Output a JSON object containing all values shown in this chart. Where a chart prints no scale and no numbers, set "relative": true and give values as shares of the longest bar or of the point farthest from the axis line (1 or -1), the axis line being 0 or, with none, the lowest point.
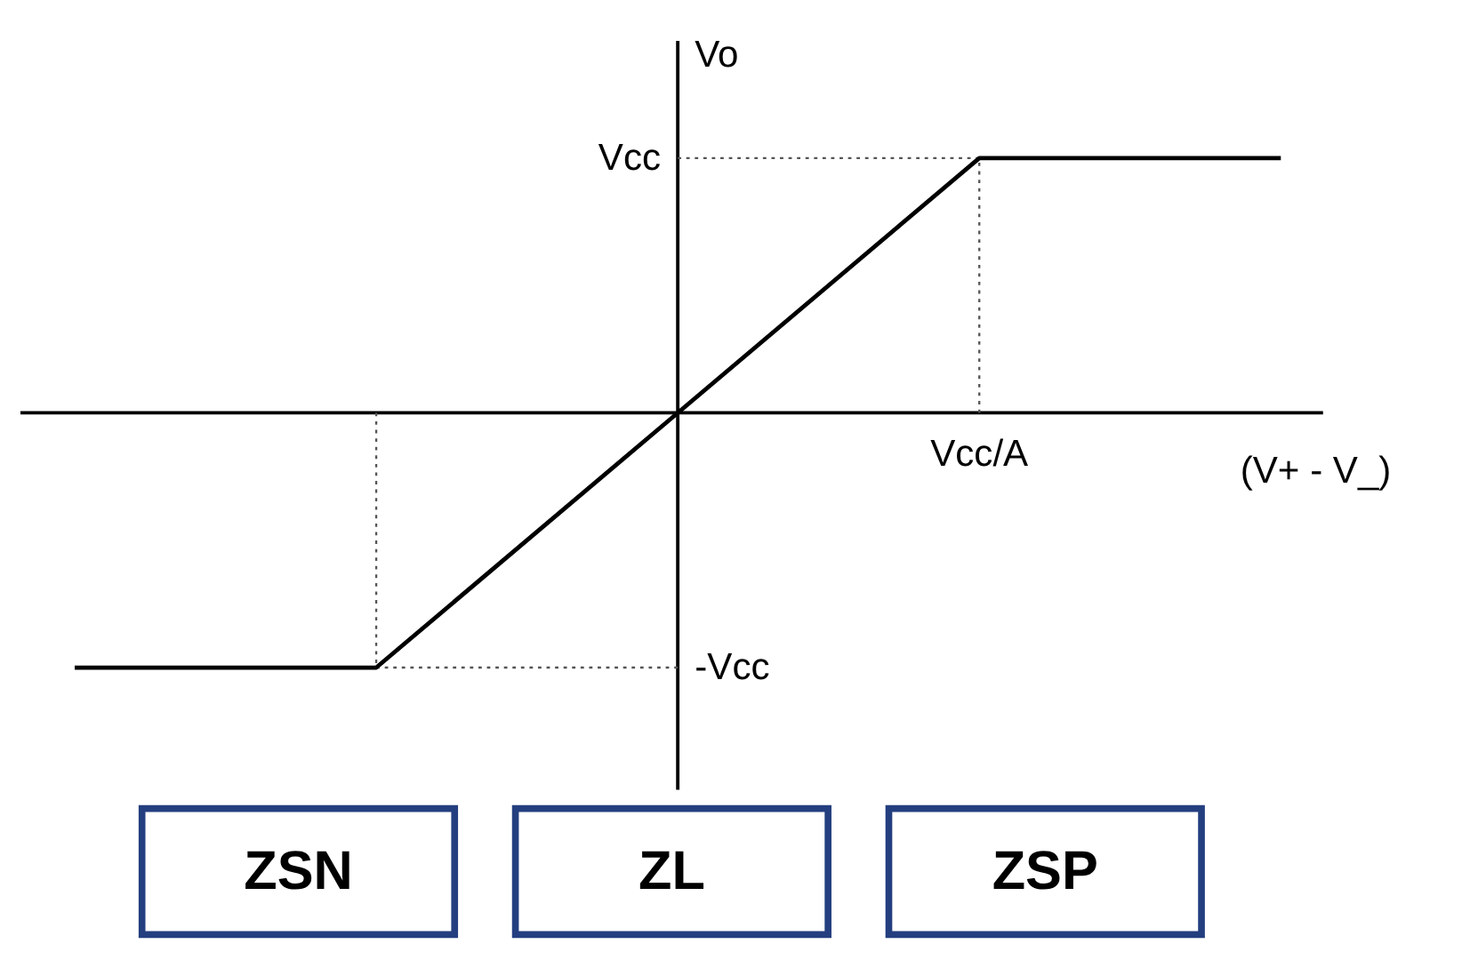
{
  "chart_data": [
    {
      "type": "line",
      "relative": true,
      "xlabel": "(V+ - V_)",
      "ylabel": "Vo",
      "grid": false,
      "categories": [
        null,
        null,
        null,
        null,
        null
      ],
      "series": [
        {
          "line_style": "solid",
          "color": "#000000",
          "values": [
            -1,
            -1,
            0,
            1,
            1
          ]
        }
      ],
      "annotations": [
        "Vcc",
        "-Vcc",
        "Vcc/A"
      ]
    },
    {
      "type": "other",
      "annotations": [
        "ZSN",
        "ZL",
        "ZSP"
      ]
    }
  ]
}
